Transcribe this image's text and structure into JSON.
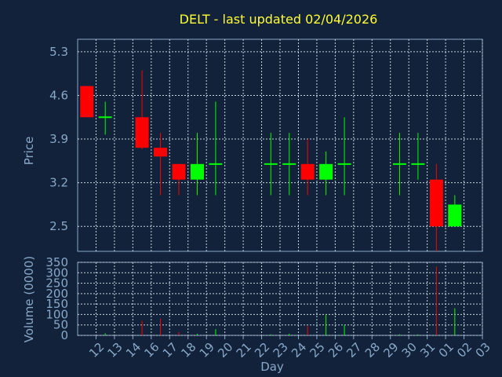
{
  "chart_data": {
    "type": "candlestick",
    "title": "DELT - last updated 02/04/2026",
    "xlabel": "Day",
    "grid": true,
    "colors": {
      "up": "#00ff00",
      "down": "#ff0000",
      "background": "#11223a",
      "text": "#8aa8c8",
      "title": "#ffff33",
      "grid": "#c8d2dc"
    },
    "x_ticks": [
      "12",
      "13",
      "14",
      "16",
      "17",
      "18",
      "19",
      "20",
      "21",
      "22",
      "23",
      "24",
      "25",
      "26",
      "27",
      "28",
      "29",
      "30",
      "31",
      "01",
      "02",
      "03"
    ],
    "price_panel": {
      "ylabel": "Price",
      "ylim": [
        2.1,
        5.5
      ],
      "yticks": [
        5.3,
        4.6,
        3.9,
        3.2,
        2.5
      ],
      "ytick_labels": [
        "5.3",
        "4.6",
        "3.9",
        "3.2",
        "2.5"
      ]
    },
    "volume_panel": {
      "ylabel": "Volume (0000)",
      "ylim": [
        0,
        350
      ],
      "yticks": [
        350,
        300,
        250,
        200,
        150,
        100,
        50,
        0
      ],
      "ytick_labels": [
        "350",
        "300",
        "250",
        "200",
        "150",
        "100",
        "50",
        "0"
      ]
    },
    "candles": [
      {
        "day": "12",
        "open": 4.75,
        "high": 4.75,
        "low": 4.25,
        "close": 4.25,
        "volume": 0
      },
      {
        "day": "13",
        "open": 4.25,
        "high": 4.5,
        "low": 3.97,
        "close": 4.25,
        "volume": 10
      },
      {
        "day": "16",
        "open": 4.25,
        "high": 5.0,
        "low": 3.74,
        "close": 3.76,
        "volume": 70
      },
      {
        "day": "17",
        "open": 3.76,
        "high": 4.0,
        "low": 3.0,
        "close": 3.62,
        "volume": 80
      },
      {
        "day": "18",
        "open": 3.5,
        "high": 3.5,
        "low": 3.0,
        "close": 3.25,
        "volume": 15
      },
      {
        "day": "19",
        "open": 3.25,
        "high": 4.0,
        "low": 3.0,
        "close": 3.5,
        "volume": 8
      },
      {
        "day": "20",
        "open": 3.5,
        "high": 4.5,
        "low": 3.0,
        "close": 3.5,
        "volume": 30
      },
      {
        "day": "23",
        "open": 3.5,
        "high": 4.0,
        "low": 3.0,
        "close": 3.5,
        "volume": 5
      },
      {
        "day": "24",
        "open": 3.5,
        "high": 4.0,
        "low": 3.0,
        "close": 3.5,
        "volume": 8
      },
      {
        "day": "25",
        "open": 3.5,
        "high": 3.9,
        "low": 3.0,
        "close": 3.25,
        "volume": 45
      },
      {
        "day": "26",
        "open": 3.25,
        "high": 3.7,
        "low": 3.0,
        "close": 3.5,
        "volume": 100
      },
      {
        "day": "27",
        "open": 3.5,
        "high": 4.25,
        "low": 3.0,
        "close": 3.5,
        "volume": 50
      },
      {
        "day": "30",
        "open": 3.5,
        "high": 4.0,
        "low": 3.0,
        "close": 3.5,
        "volume": 5
      },
      {
        "day": "31",
        "open": 3.5,
        "high": 4.0,
        "low": 3.25,
        "close": 3.5,
        "volume": 5
      },
      {
        "day": "01",
        "open": 3.25,
        "high": 3.5,
        "low": 2.0,
        "close": 2.5,
        "volume": 330
      },
      {
        "day": "02",
        "open": 2.5,
        "high": 3.0,
        "low": 2.5,
        "close": 2.85,
        "volume": 130
      }
    ]
  }
}
